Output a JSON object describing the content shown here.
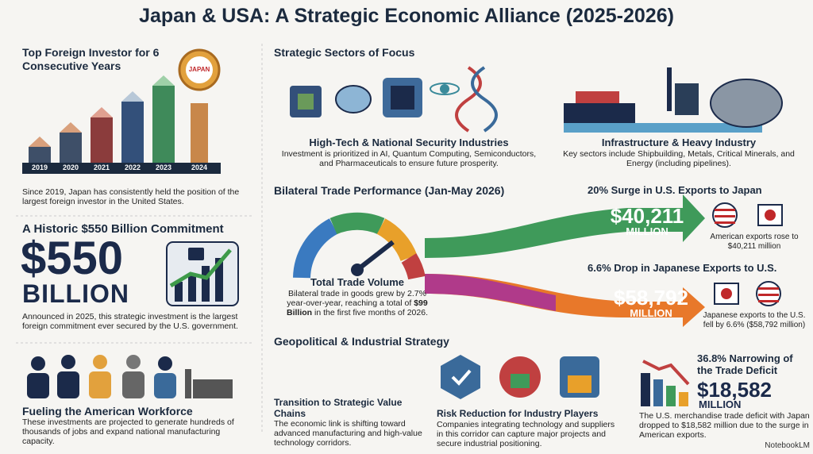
{
  "title": "Japan & USA: A Strategic Economic Alliance (2025-2026)",
  "investor": {
    "heading": "Top Foreign Investor for 6 Consecutive Years",
    "badge": "JAPAN",
    "years": [
      "2019",
      "2020",
      "2021",
      "2022",
      "2023",
      "2024"
    ],
    "body": "Since 2019, Japan has consistently held the position of the largest foreign investor in the United States."
  },
  "commitment": {
    "heading": "A Historic $550 Billion Commitment",
    "amount": "$550",
    "unit": "BILLION",
    "body": "Announced in 2025, this strategic investment is the largest foreign commitment ever secured by the U.S. government."
  },
  "workforce": {
    "heading": "Fueling the American Workforce",
    "body": "These investments are projected to generate hundreds of thousands of jobs and expand national manufacturing capacity."
  },
  "sectors": {
    "heading": "Strategic Sectors of Focus",
    "items": [
      {
        "title": "High-Tech & National Security Industries",
        "body": "Investment is prioritized in AI, Quantum Computing, Semiconductors, and Pharmaceuticals to ensure future prosperity."
      },
      {
        "title": "Infrastructure & Heavy Industry",
        "body": "Key sectors include Shipbuilding, Metals, Critical Minerals, and Energy (including pipelines)."
      }
    ]
  },
  "trade": {
    "heading": "Bilateral Trade Performance (Jan-May 2026)",
    "gauge_title": "Total Trade Volume",
    "body_pre": "Bilateral trade in goods grew by 2.7% year-over-year, reaching a total of",
    "body_bold": "$99 Billion",
    "body_post": "in the first five months of 2026."
  },
  "us_exports": {
    "heading": "20% Surge in U.S. Exports to Japan",
    "amount": "$40,211",
    "unit": "MILLION",
    "caption": "American exports rose to $40,211 million"
  },
  "jp_exports": {
    "heading": "6.6% Drop in Japanese Exports to U.S.",
    "amount": "$58,792",
    "unit": "MILLION",
    "caption": "Japanese exports to the U.S. fell by 6.6% ($58,792 million)"
  },
  "strategy": {
    "heading": "Geopolitical & Industrial Strategy",
    "items": [
      {
        "title": "Transition to Strategic Value Chains",
        "body": "The economic link is shifting toward advanced manufacturing and high-value technology corridors."
      },
      {
        "title": "Risk Reduction for Industry Players",
        "body": "Companies integrating technology and suppliers in this corridor can capture major projects and secure industrial positioning."
      }
    ]
  },
  "deficit": {
    "heading": "36.8% Narrowing of the Trade Deficit",
    "amount": "$18,582",
    "unit": "MILLION",
    "body": "The U.S. merchandise trade deficit with Japan dropped to $18,582 million due to the surge in American exports."
  },
  "footer": "NotebookLM"
}
